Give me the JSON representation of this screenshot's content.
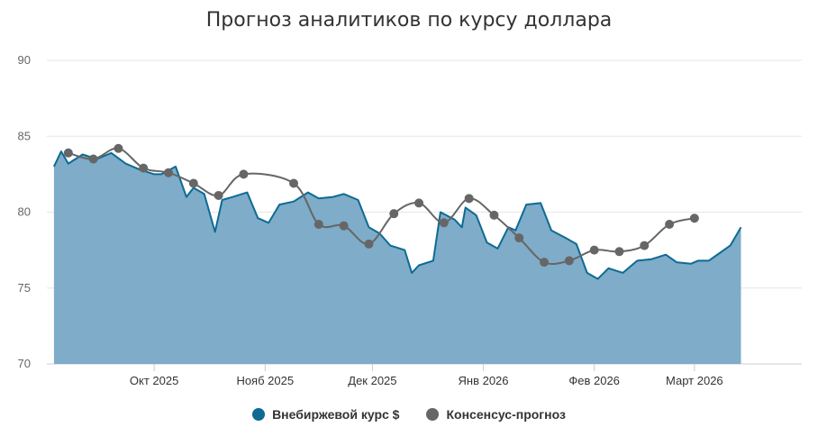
{
  "chart_data": {
    "type": "area",
    "title": "Прогноз аналитиков по курсу доллара",
    "ylim": [
      70,
      90
    ],
    "yticks": [
      70,
      75,
      80,
      85,
      90
    ],
    "xlim": [
      "2025-09-01",
      "2026-03-31"
    ],
    "xticks": [
      {
        "date": "2025-10-01",
        "label": "Окт 2025"
      },
      {
        "date": "2025-11-01",
        "label": "Нояб 2025"
      },
      {
        "date": "2025-12-01",
        "label": "Дек 2025"
      },
      {
        "date": "2026-01-01",
        "label": "Янв 2026"
      },
      {
        "date": "2026-02-01",
        "label": "Фев 2026"
      },
      {
        "date": "2026-03-01",
        "label": "Март 2026"
      }
    ],
    "grid": true,
    "legend_position": "bottom-center",
    "series": [
      {
        "name": "Внебиржевой курс $",
        "type": "area",
        "color": "#0e6a93",
        "fill": "#7eacc9",
        "points": [
          [
            "2025-09-03",
            83.0
          ],
          [
            "2025-09-05",
            84.0
          ],
          [
            "2025-09-07",
            83.2
          ],
          [
            "2025-09-11",
            83.8
          ],
          [
            "2025-09-15",
            83.5
          ],
          [
            "2025-09-19",
            83.9
          ],
          [
            "2025-09-23",
            83.2
          ],
          [
            "2025-09-27",
            82.8
          ],
          [
            "2025-10-01",
            82.5
          ],
          [
            "2025-10-03",
            82.5
          ],
          [
            "2025-10-07",
            83.0
          ],
          [
            "2025-10-10",
            81.0
          ],
          [
            "2025-10-12",
            81.6
          ],
          [
            "2025-10-15",
            81.2
          ],
          [
            "2025-10-18",
            78.7
          ],
          [
            "2025-10-20",
            80.8
          ],
          [
            "2025-10-23",
            81.0
          ],
          [
            "2025-10-27",
            81.3
          ],
          [
            "2025-10-30",
            79.6
          ],
          [
            "2025-11-02",
            79.3
          ],
          [
            "2025-11-05",
            80.5
          ],
          [
            "2025-11-09",
            80.7
          ],
          [
            "2025-11-13",
            81.3
          ],
          [
            "2025-11-16",
            80.9
          ],
          [
            "2025-11-20",
            81.0
          ],
          [
            "2025-11-23",
            81.2
          ],
          [
            "2025-11-27",
            80.8
          ],
          [
            "2025-11-30",
            79.0
          ],
          [
            "2025-12-03",
            78.6
          ],
          [
            "2025-12-06",
            77.8
          ],
          [
            "2025-12-10",
            77.5
          ],
          [
            "2025-12-12",
            76.0
          ],
          [
            "2025-12-14",
            76.5
          ],
          [
            "2025-12-18",
            76.8
          ],
          [
            "2025-12-20",
            80.0
          ],
          [
            "2025-12-24",
            79.5
          ],
          [
            "2025-12-26",
            79.0
          ],
          [
            "2025-12-27",
            80.3
          ],
          [
            "2025-12-30",
            79.8
          ],
          [
            "2026-01-02",
            78.0
          ],
          [
            "2026-01-05",
            77.6
          ],
          [
            "2026-01-08",
            79.0
          ],
          [
            "2026-01-10",
            78.8
          ],
          [
            "2026-01-13",
            80.5
          ],
          [
            "2026-01-17",
            80.6
          ],
          [
            "2026-01-20",
            78.8
          ],
          [
            "2026-01-24",
            78.3
          ],
          [
            "2026-01-27",
            77.9
          ],
          [
            "2026-01-30",
            76.0
          ],
          [
            "2026-02-02",
            75.6
          ],
          [
            "2026-02-05",
            76.3
          ],
          [
            "2026-02-09",
            76.0
          ],
          [
            "2026-02-13",
            76.8
          ],
          [
            "2026-02-17",
            76.9
          ],
          [
            "2026-02-21",
            77.2
          ],
          [
            "2026-02-24",
            76.7
          ],
          [
            "2026-02-28",
            76.6
          ],
          [
            "2026-03-02",
            76.8
          ],
          [
            "2026-03-05",
            76.8
          ],
          [
            "2026-03-08",
            77.3
          ],
          [
            "2026-03-11",
            77.8
          ],
          [
            "2026-03-14",
            79.0
          ]
        ]
      },
      {
        "name": "Консенсус-прогноз",
        "type": "line",
        "color": "#666666",
        "points": [
          [
            "2025-09-07",
            83.9
          ],
          [
            "2025-09-14",
            83.5
          ],
          [
            "2025-09-21",
            84.2
          ],
          [
            "2025-09-28",
            82.9
          ],
          [
            "2025-10-05",
            82.6
          ],
          [
            "2025-10-12",
            81.9
          ],
          [
            "2025-10-19",
            81.1
          ],
          [
            "2025-10-26",
            82.5
          ],
          [
            "2025-11-09",
            81.9
          ],
          [
            "2025-11-16",
            79.2
          ],
          [
            "2025-11-23",
            79.1
          ],
          [
            "2025-11-30",
            77.9
          ],
          [
            "2025-12-07",
            79.9
          ],
          [
            "2025-12-14",
            80.6
          ],
          [
            "2025-12-21",
            79.3
          ],
          [
            "2025-12-28",
            80.9
          ],
          [
            "2026-01-04",
            79.8
          ],
          [
            "2026-01-11",
            78.3
          ],
          [
            "2026-01-18",
            76.7
          ],
          [
            "2026-01-25",
            76.8
          ],
          [
            "2026-02-01",
            77.5
          ],
          [
            "2026-02-08",
            77.4
          ],
          [
            "2026-02-15",
            77.8
          ],
          [
            "2026-02-22",
            79.2
          ],
          [
            "2026-03-01",
            79.6
          ]
        ]
      }
    ]
  }
}
